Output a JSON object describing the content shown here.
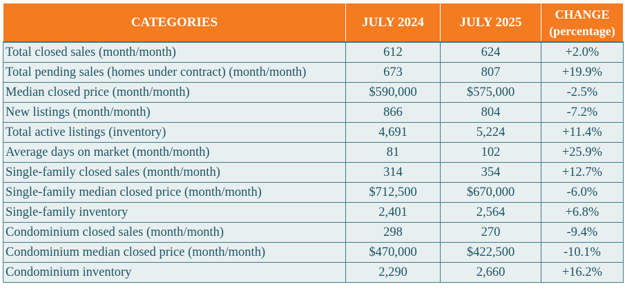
{
  "header": {
    "categories": "CATEGORIES",
    "col_2024": "JULY 2024",
    "col_2025": "JULY 2025",
    "change_line1": "CHANGE",
    "change_line2": "(percentage)"
  },
  "rows": [
    {
      "category": "Total closed sales (month/month)",
      "jul_2024": "612",
      "jul_2025": "624",
      "change": "+2.0%"
    },
    {
      "category": "Total pending sales (homes under contract) (month/month)",
      "jul_2024": "673",
      "jul_2025": "807",
      "change": "+19.9%"
    },
    {
      "category": "Median closed price (month/month)",
      "jul_2024": "$590,000",
      "jul_2025": "$575,000",
      "change": "-2.5%"
    },
    {
      "category": "New listings (month/month)",
      "jul_2024": "866",
      "jul_2025": "804",
      "change": "-7.2%"
    },
    {
      "category": "Total active listings (inventory)",
      "jul_2024": "4,691",
      "jul_2025": "5,224",
      "change": "+11.4%"
    },
    {
      "category": "Average days on market (month/month)",
      "jul_2024": "81",
      "jul_2025": "102",
      "change": "+25.9%"
    },
    {
      "category": "Single-family closed sales (month/month)",
      "jul_2024": "314",
      "jul_2025": "354",
      "change": "+12.7%"
    },
    {
      "category": "Single-family median closed price (month/month)",
      "jul_2024": "$712,500",
      "jul_2025": "$670,000",
      "change": "-6.0%"
    },
    {
      "category": "Single-family inventory",
      "jul_2024": "2,401",
      "jul_2025": "2,564",
      "change": "+6.8%"
    },
    {
      "category": "Condominium closed sales (month/month)",
      "jul_2024": "298",
      "jul_2025": "270",
      "change": "-9.4%"
    },
    {
      "category": "Condominium median closed price (month/month)",
      "jul_2024": "$470,000",
      "jul_2025": "$422,500",
      "change": "-10.1%"
    },
    {
      "category": "Condominium inventory",
      "jul_2024": "2,290",
      "jul_2025": "2,660",
      "change": "+16.2%"
    }
  ],
  "colors": {
    "header_bg": "#f47b20",
    "header_text": "#ffffff",
    "cell_bg": "#e8eff0",
    "cell_text": "#1a5566",
    "border": "#3a7a8c"
  }
}
